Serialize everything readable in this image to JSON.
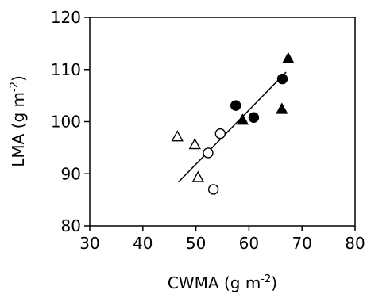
{
  "chart_data": {
    "type": "scatter",
    "xlabel": {
      "main": "CWMA (g m",
      "sup": "-2",
      "close": ")"
    },
    "ylabel": {
      "main": "LMA (g m",
      "sup": "-2",
      "close": ")"
    },
    "xlim": [
      30,
      80
    ],
    "ylim": [
      80,
      120
    ],
    "x_ticks": [
      "30",
      "40",
      "50",
      "60",
      "70",
      "80"
    ],
    "y_ticks": [
      "80",
      "90",
      "100",
      "110",
      "120"
    ],
    "grid": false,
    "series": [
      {
        "marker": "open-triangle",
        "points": [
          [
            46.5,
            97.0
          ],
          [
            49.8,
            95.5
          ],
          [
            50.4,
            89.2
          ]
        ]
      },
      {
        "marker": "open-circle",
        "points": [
          [
            52.3,
            94.0
          ],
          [
            53.3,
            87.0
          ],
          [
            54.6,
            97.7
          ]
        ]
      },
      {
        "marker": "filled-circle",
        "points": [
          [
            57.5,
            103.1
          ],
          [
            60.9,
            100.8
          ],
          [
            66.3,
            108.2
          ]
        ]
      },
      {
        "marker": "filled-triangle",
        "points": [
          [
            58.8,
            100.2
          ],
          [
            66.2,
            102.3
          ],
          [
            67.4,
            112.0
          ]
        ]
      }
    ],
    "fit_line": {
      "x": [
        46.7,
        67.0
      ],
      "y": [
        88.4,
        109.5
      ]
    }
  }
}
